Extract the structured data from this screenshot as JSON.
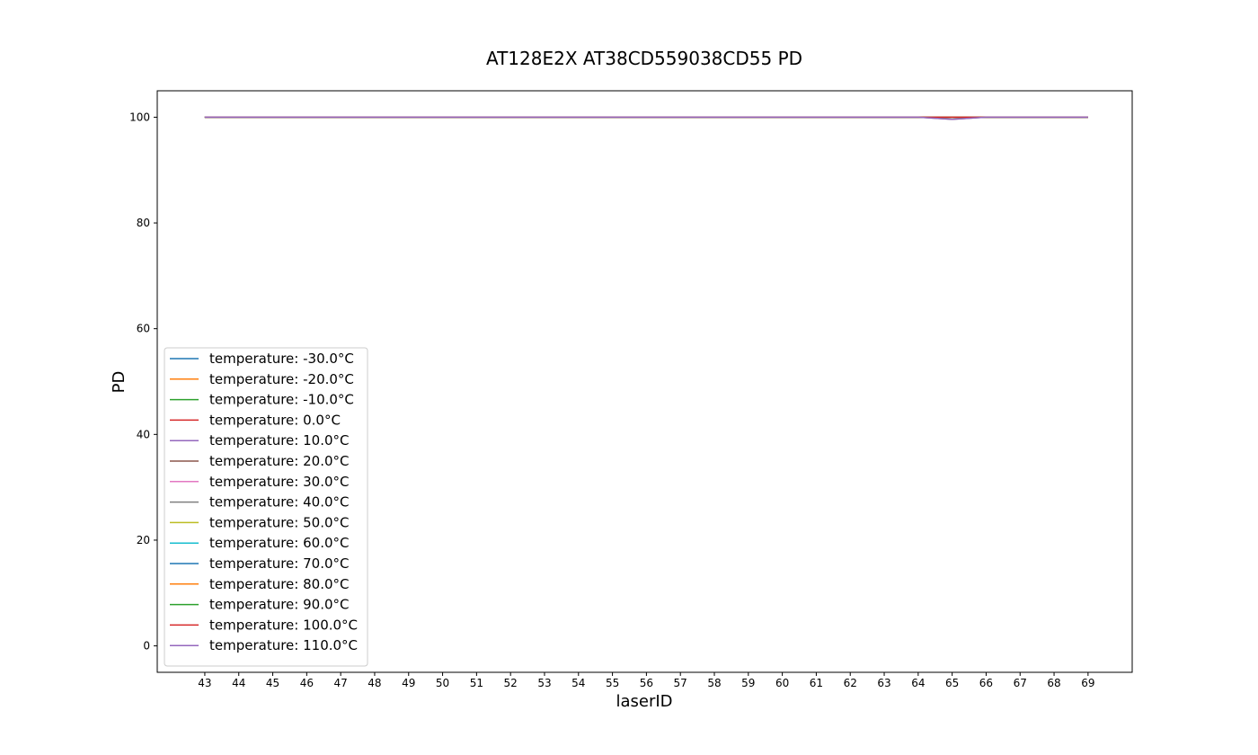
{
  "chart_data": {
    "type": "line",
    "title": "AT128E2X AT38CD559038CD55 PD",
    "xlabel": "laserID",
    "ylabel": "PD",
    "x": [
      43,
      44,
      45,
      46,
      47,
      48,
      49,
      50,
      51,
      52,
      53,
      54,
      55,
      56,
      57,
      58,
      59,
      60,
      61,
      62,
      63,
      64,
      65,
      66,
      67,
      68,
      69
    ],
    "xlim": [
      41.6,
      70.3
    ],
    "ylim": [
      -5,
      105
    ],
    "yticks": [
      0,
      20,
      40,
      60,
      80,
      100
    ],
    "grid": false,
    "legend_position": "lower-left",
    "series": [
      {
        "name": "temperature: -30.0°C",
        "color": "#1f77b4",
        "values": [
          100,
          100,
          100,
          100,
          100,
          100,
          100,
          100,
          100,
          100,
          100,
          100,
          100,
          100,
          100,
          100,
          100,
          100,
          100,
          100,
          100,
          100,
          100,
          100,
          100,
          100,
          100
        ]
      },
      {
        "name": "temperature: -20.0°C",
        "color": "#ff7f0e",
        "values": [
          100,
          100,
          100,
          100,
          100,
          100,
          100,
          100,
          100,
          100,
          100,
          100,
          100,
          100,
          100,
          100,
          100,
          100,
          100,
          100,
          100,
          100,
          100,
          100,
          100,
          100,
          100
        ]
      },
      {
        "name": "temperature: -10.0°C",
        "color": "#2ca02c",
        "values": [
          100,
          100,
          100,
          100,
          100,
          100,
          100,
          100,
          100,
          100,
          100,
          100,
          100,
          100,
          100,
          100,
          100,
          100,
          100,
          100,
          100,
          100,
          100,
          100,
          100,
          100,
          100
        ]
      },
      {
        "name": "temperature: 0.0°C",
        "color": "#d62728",
        "values": [
          100,
          100,
          100,
          100,
          100,
          100,
          100,
          100,
          100,
          100,
          100,
          100,
          100,
          100,
          100,
          100,
          100,
          100,
          100,
          100,
          100,
          100,
          100,
          100,
          100,
          100,
          100
        ]
      },
      {
        "name": "temperature: 10.0°C",
        "color": "#9467bd",
        "values": [
          100,
          100,
          100,
          100,
          100,
          100,
          100,
          100,
          100,
          100,
          100,
          100,
          100,
          100,
          100,
          100,
          100,
          100,
          100,
          100,
          100,
          100,
          100,
          100,
          100,
          100,
          100
        ]
      },
      {
        "name": "temperature: 20.0°C",
        "color": "#8c564b",
        "values": [
          100,
          100,
          100,
          100,
          100,
          100,
          100,
          100,
          100,
          100,
          100,
          100,
          100,
          100,
          100,
          100,
          100,
          100,
          100,
          100,
          100,
          100,
          100,
          100,
          100,
          100,
          100
        ]
      },
      {
        "name": "temperature: 30.0°C",
        "color": "#e377c2",
        "values": [
          100,
          100,
          100,
          100,
          100,
          100,
          100,
          100,
          100,
          100,
          100,
          100,
          100,
          100,
          100,
          100,
          100,
          100,
          100,
          100,
          100,
          100,
          100,
          100,
          100,
          100,
          100
        ]
      },
      {
        "name": "temperature: 40.0°C",
        "color": "#7f7f7f",
        "values": [
          100,
          100,
          100,
          100,
          100,
          100,
          100,
          100,
          100,
          100,
          100,
          100,
          100,
          100,
          100,
          100,
          100,
          100,
          100,
          100,
          100,
          100,
          99.6,
          100,
          100,
          100,
          100
        ]
      },
      {
        "name": "temperature: 50.0°C",
        "color": "#bcbd22",
        "values": [
          100,
          100,
          100,
          100,
          100,
          100,
          100,
          100,
          100,
          100,
          100,
          100,
          100,
          100,
          100,
          100,
          100,
          100,
          100,
          100,
          100,
          100,
          100,
          100,
          100,
          100,
          100
        ]
      },
      {
        "name": "temperature: 60.0°C",
        "color": "#17becf",
        "values": [
          100,
          100,
          100,
          100,
          100,
          100,
          100,
          100,
          100,
          100,
          100,
          100,
          100,
          100,
          100,
          100,
          100,
          100,
          100,
          100,
          100,
          100,
          100,
          100,
          100,
          100,
          100
        ]
      },
      {
        "name": "temperature: 70.0°C",
        "color": "#1f77b4",
        "values": [
          100,
          100,
          100,
          100,
          100,
          100,
          100,
          100,
          100,
          100,
          100,
          100,
          100,
          100,
          100,
          100,
          100,
          100,
          100,
          100,
          100,
          100,
          100,
          100,
          100,
          100,
          100
        ]
      },
      {
        "name": "temperature: 80.0°C",
        "color": "#ff7f0e",
        "values": [
          100,
          100,
          100,
          100,
          100,
          100,
          100,
          100,
          100,
          100,
          100,
          100,
          100,
          100,
          100,
          100,
          100,
          100,
          100,
          100,
          100,
          100,
          100,
          100,
          100,
          100,
          100
        ]
      },
      {
        "name": "temperature: 90.0°C",
        "color": "#2ca02c",
        "values": [
          100,
          100,
          100,
          100,
          100,
          100,
          100,
          100,
          100,
          100,
          100,
          100,
          100,
          100,
          100,
          100,
          100,
          100,
          100,
          100,
          100,
          100,
          100,
          100,
          100,
          100,
          100
        ]
      },
      {
        "name": "temperature: 100.0°C",
        "color": "#d62728",
        "values": [
          100,
          100,
          100,
          100,
          100,
          100,
          100,
          100,
          100,
          100,
          100,
          100,
          100,
          100,
          100,
          100,
          100,
          100,
          100,
          100,
          100,
          100,
          100,
          100,
          100,
          100,
          100
        ]
      },
      {
        "name": "temperature: 110.0°C",
        "color": "#9467bd",
        "values": [
          100,
          100,
          100,
          100,
          100,
          100,
          100,
          100,
          100,
          100,
          100,
          100,
          100,
          100,
          100,
          100,
          100,
          100,
          100,
          100,
          100,
          100,
          99.6,
          100,
          100,
          100,
          100
        ]
      }
    ]
  }
}
